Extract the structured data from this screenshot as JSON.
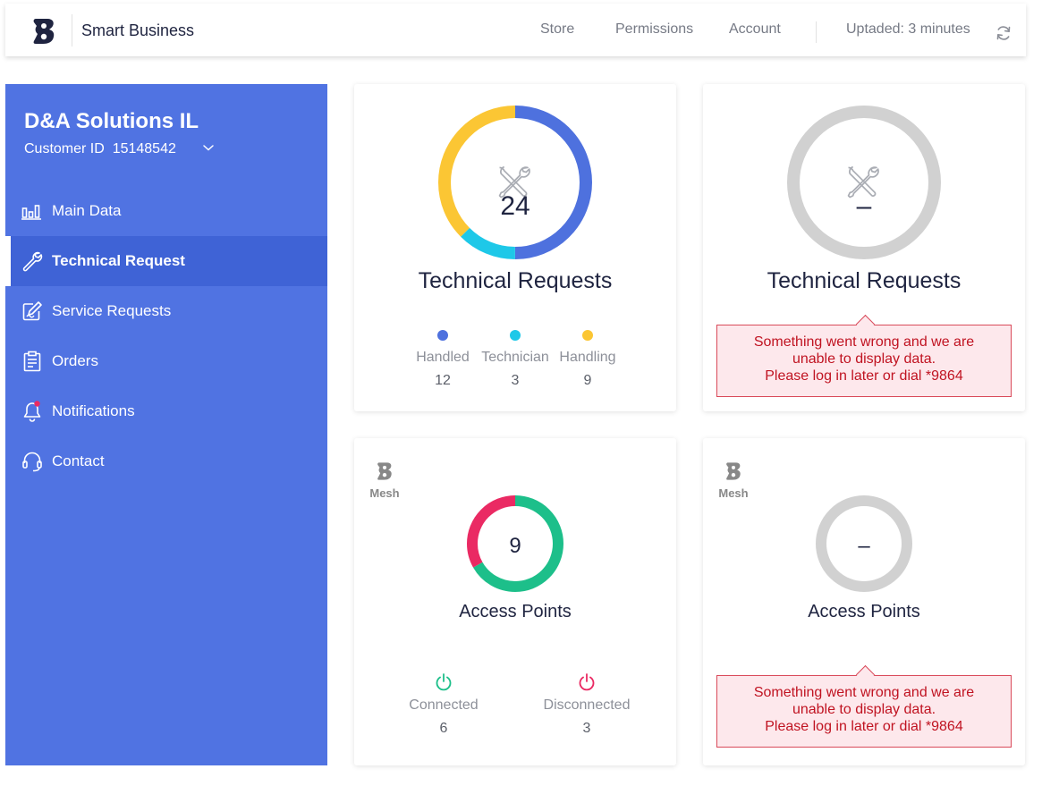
{
  "app": {
    "title": "Smart Business"
  },
  "nav": {
    "store": "Store",
    "permissions": "Permissions",
    "account": "Account",
    "updated": "Uptaded: 3 minutes"
  },
  "sidebar": {
    "company": "D&A Solutions IL",
    "customer_label": "Customer ID",
    "customer_id": "15148542",
    "items": [
      {
        "label": "Main Data",
        "icon": "bar-chart-icon"
      },
      {
        "label": "Technical Request",
        "icon": "wrench-icon",
        "active": true
      },
      {
        "label": "Service Requests",
        "icon": "edit-icon"
      },
      {
        "label": "Orders",
        "icon": "clipboard-icon"
      },
      {
        "label": "Notifications",
        "icon": "bell-icon"
      },
      {
        "label": "Contact",
        "icon": "headset-icon"
      }
    ]
  },
  "cards": {
    "tech": {
      "title": "Technical Requests",
      "total": "24",
      "legend": [
        {
          "label": "Handled",
          "value": "12",
          "color": "#4e71de"
        },
        {
          "label": "Technician",
          "value": "3",
          "color": "#1ec8e8"
        },
        {
          "label": "Handling",
          "value": "9",
          "color": "#fbc634"
        }
      ]
    },
    "tech_error": {
      "title": "Technical Requests",
      "total": "–",
      "error_line1": "Something went wrong and we are",
      "error_line2": "unable to display data.",
      "error_line3": "Please log in later or dial *9864"
    },
    "ap": {
      "brand": "Mesh",
      "title": "Access Points",
      "total": "9",
      "connected_label": "Connected",
      "connected_value": "6",
      "disconnected_label": "Disconnected",
      "disconnected_value": "3",
      "colors": {
        "connected": "#1dbf8a",
        "disconnected": "#ea2a63"
      }
    },
    "ap_error": {
      "brand": "Mesh",
      "title": "Access Points",
      "total": "–",
      "error_line1": "Something went wrong and we are",
      "error_line2": "unable to display data.",
      "error_line3": "Please log in later or dial *9864"
    }
  },
  "colors": {
    "sidebar": "#5073e2",
    "accent": "#4e71de",
    "error": "#c01321"
  }
}
